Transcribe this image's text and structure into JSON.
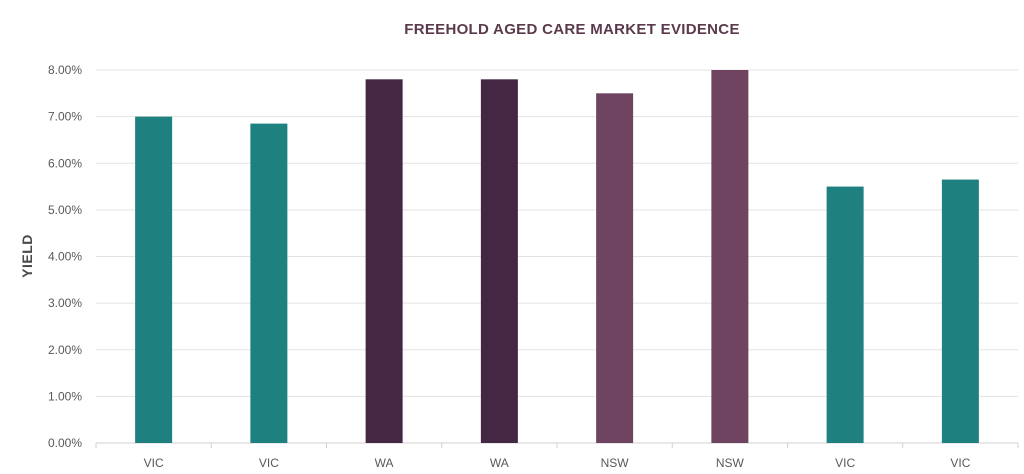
{
  "chart_data": {
    "type": "bar",
    "title": "FREEHOLD AGED CARE MARKET EVIDENCE",
    "xlabel": "",
    "ylabel": "YIELD",
    "categories": [
      "VIC",
      "VIC",
      "WA",
      "WA",
      "NSW",
      "NSW",
      "VIC",
      "VIC"
    ],
    "values": [
      7.0,
      6.85,
      7.8,
      7.8,
      7.5,
      8.0,
      5.5,
      5.65
    ],
    "bar_colors": [
      "#1f8080",
      "#1f8080",
      "#442742",
      "#442742",
      "#6f4461",
      "#6f4461",
      "#1f8080",
      "#1f8080"
    ],
    "ylim": [
      0,
      8
    ],
    "y_ticks": [
      "0.00%",
      "1.00%",
      "2.00%",
      "3.00%",
      "4.00%",
      "5.00%",
      "6.00%",
      "7.00%",
      "8.00%"
    ],
    "y_tick_values": [
      0,
      1,
      2,
      3,
      4,
      5,
      6,
      7,
      8
    ],
    "grid": true,
    "legend": "none"
  }
}
